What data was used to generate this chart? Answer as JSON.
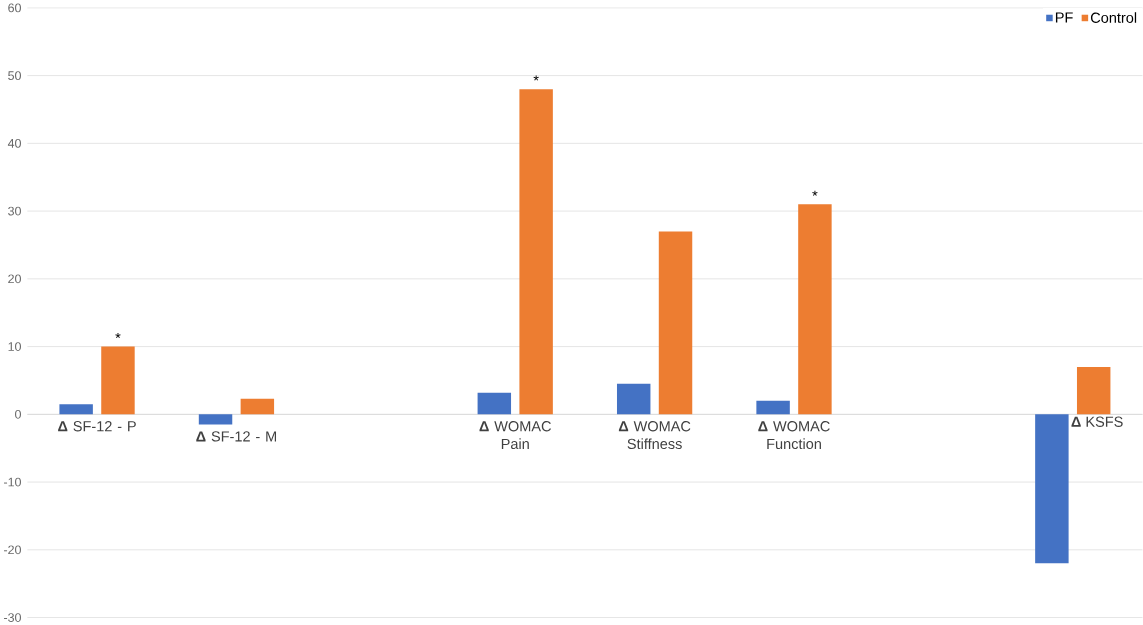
{
  "chart_data": {
    "type": "bar",
    "categories": [
      "**Δ** SF-12 - P",
      "**Δ** SF-12 - M",
      null,
      "**Δ** WOMAC Pain",
      "**Δ** WOMAC Stiffness",
      "**Δ** WOMAC Function",
      null,
      "**Δ** KSFS"
    ],
    "series": [
      {
        "name": "PF",
        "color": "#4472c4",
        "values": [
          1.5,
          -1.5,
          null,
          3.2,
          4.5,
          2,
          null,
          -22
        ]
      },
      {
        "name": "Control",
        "color": "#ed7d31",
        "values": [
          10,
          2.3,
          null,
          48,
          27,
          31,
          null,
          7
        ]
      }
    ],
    "ylim": [
      -30,
      60
    ],
    "yticks": [
      -30,
      -20,
      -10,
      0,
      10,
      20,
      30,
      40,
      50,
      60
    ],
    "grid": "y",
    "legend": "top right",
    "annotations": [
      {
        "text": "*",
        "x": "**Δ** SF-12 - P",
        "y": 10
      },
      {
        "text": "*",
        "x": "**Δ** WOMAC Pain",
        "y": 48
      },
      {
        "text": "*",
        "x": "**Δ** WOMAC Function",
        "y": 31
      }
    ]
  }
}
